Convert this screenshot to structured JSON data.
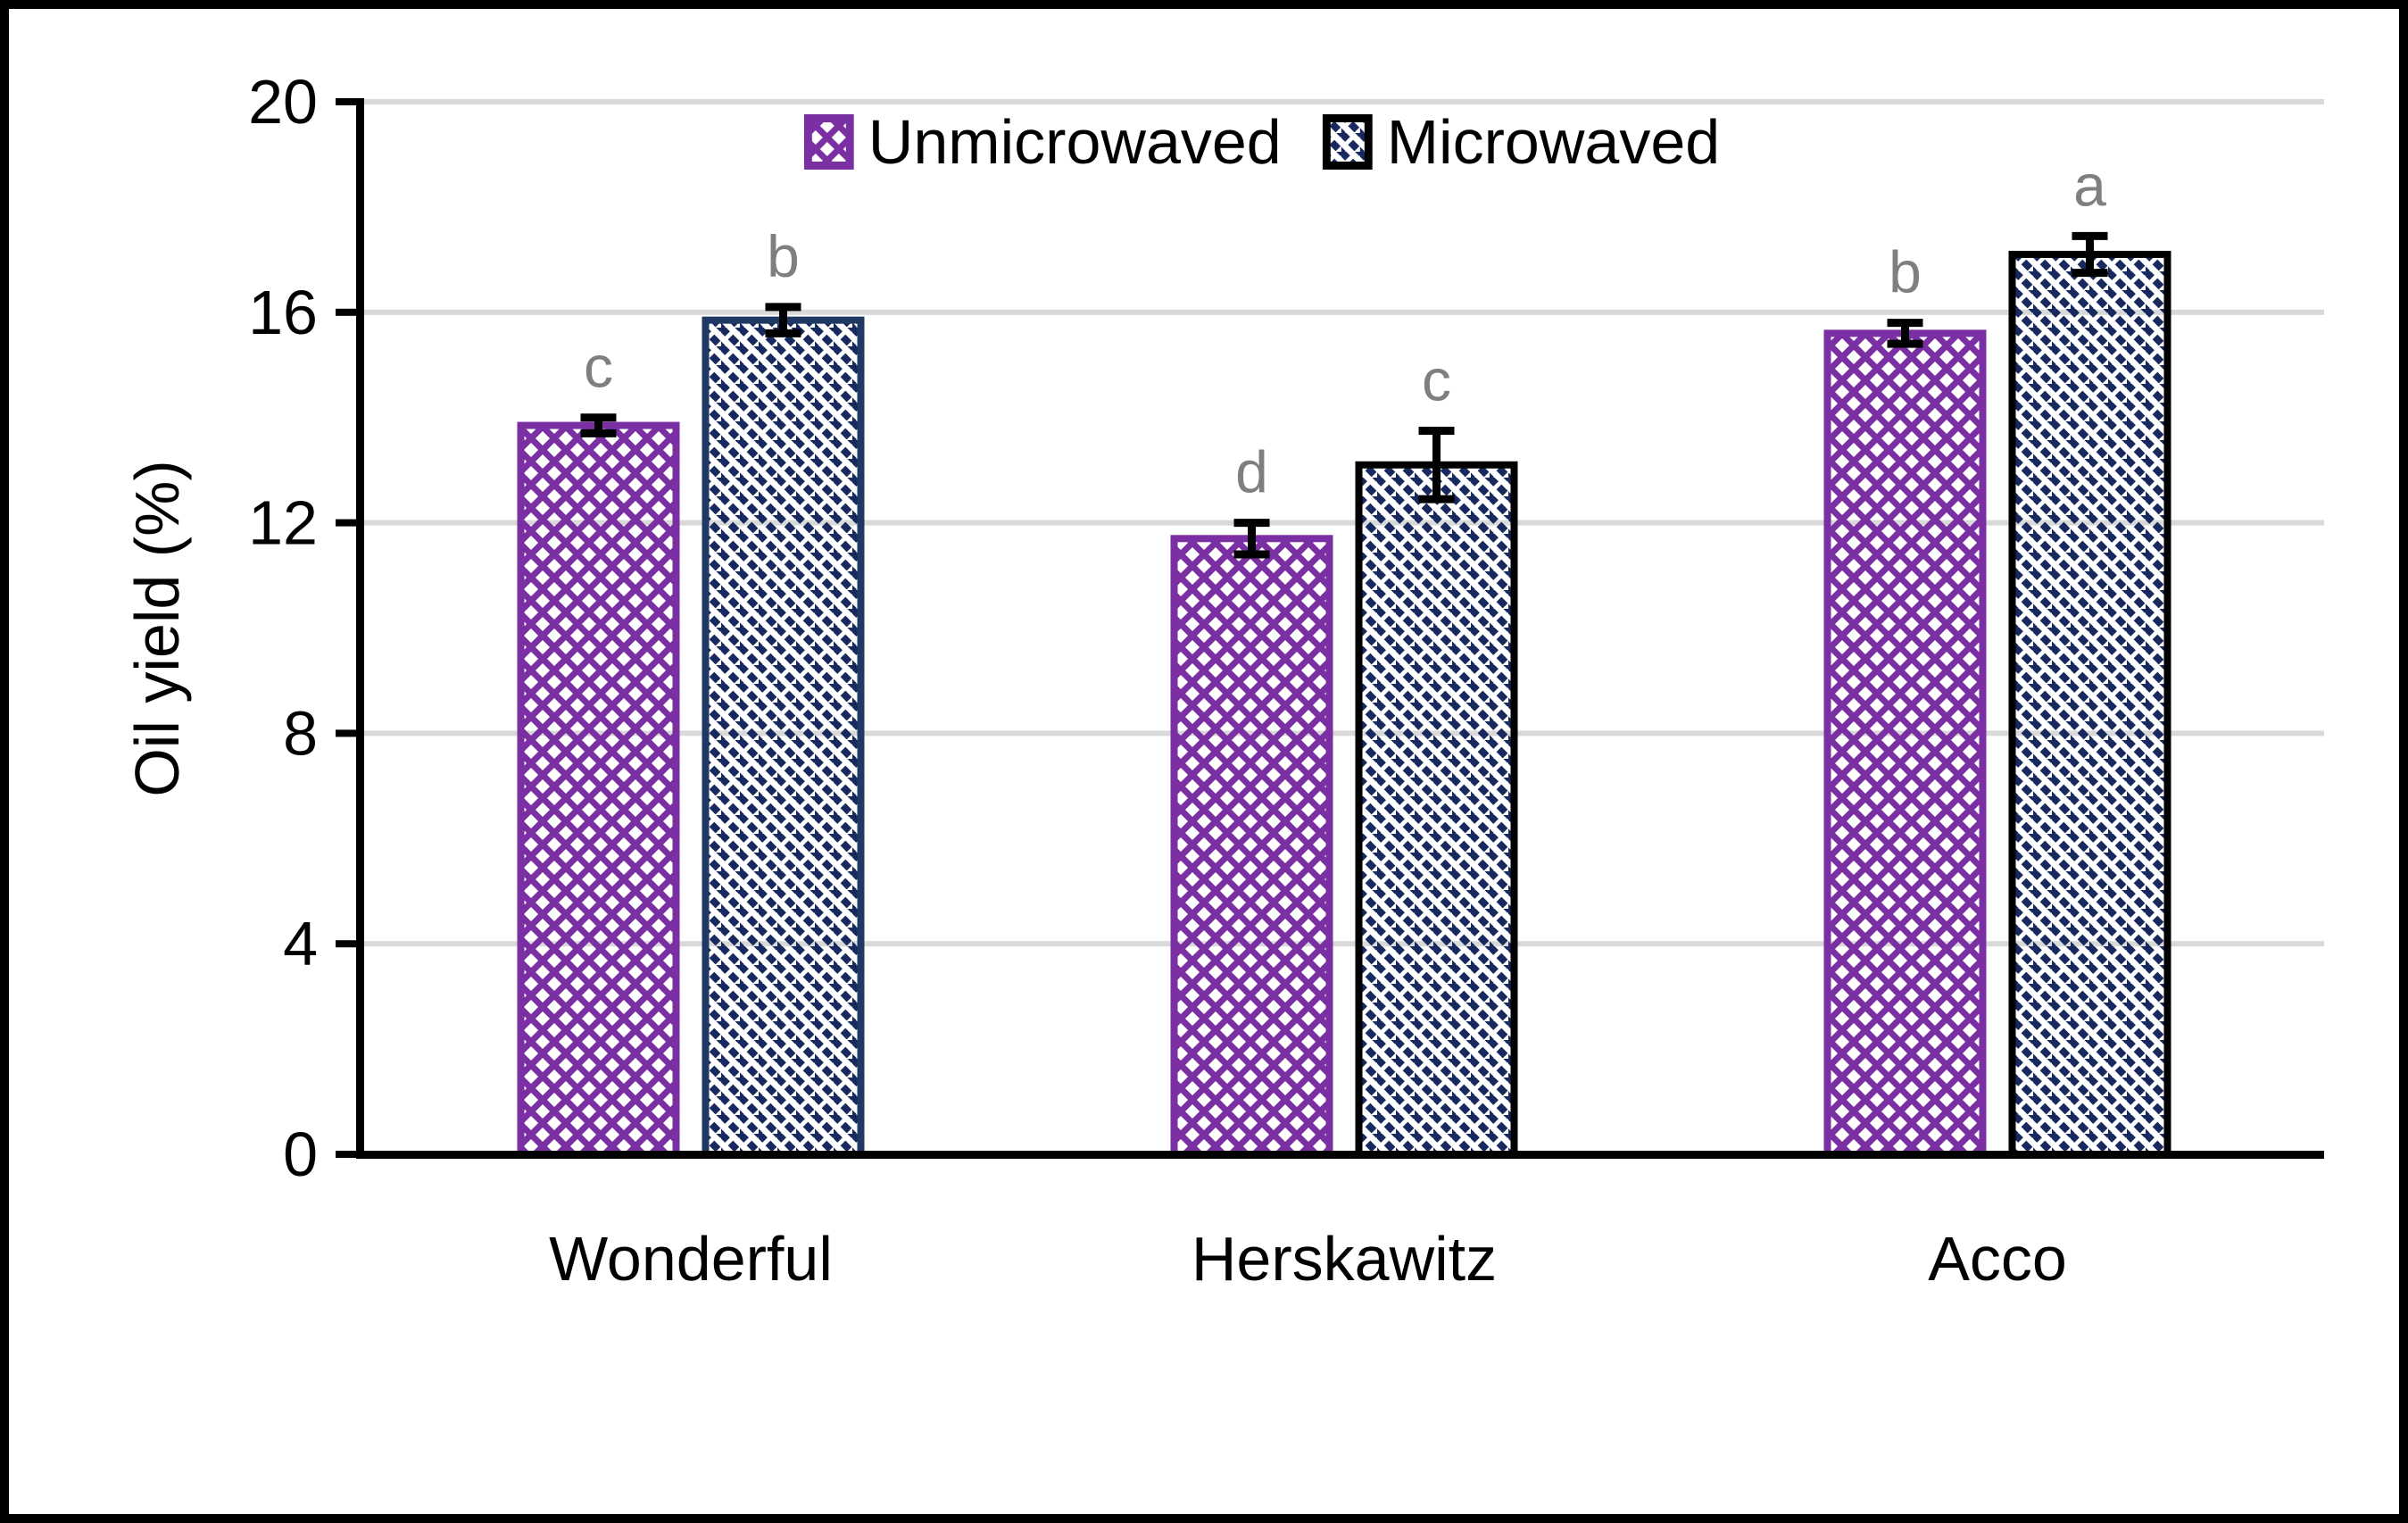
{
  "figure": {
    "background": "#FFFFFF",
    "border_color": "#000000"
  },
  "chart_data": {
    "type": "bar",
    "title": "",
    "categories": [
      "Wonderful",
      "Herskawitz",
      "Acco"
    ],
    "series": [
      {
        "name": "Unmicrowaved",
        "values": [
          13.85,
          11.7,
          15.6
        ],
        "errors": [
          0.15,
          0.3,
          0.2
        ],
        "sig_letters": [
          "c",
          "d",
          "b"
        ],
        "pattern": "diagonal-crosshatch",
        "color": "#7A30A2",
        "border_colors": [
          "#7A30A2",
          "#7A30A2",
          "#7A30A2"
        ]
      },
      {
        "name": "Microwaved",
        "values": [
          15.85,
          13.1,
          17.1
        ],
        "errors": [
          0.25,
          0.65,
          0.35
        ],
        "sig_letters": [
          "b",
          "c",
          "a"
        ],
        "pattern": "diagonal-hatch-down",
        "color": "#17295E",
        "border_colors": [
          "#1F3864",
          "#000000",
          "#000000"
        ]
      }
    ],
    "xlabel": "",
    "ylabel": "Oil yield (%)",
    "ylim": [
      0,
      20
    ],
    "yticks": [
      0,
      4,
      8,
      12,
      16,
      20
    ],
    "grid": "horizontal",
    "legend_position": "top-center",
    "colors": {
      "gridline": "#D9D9D9",
      "axis": "#000000",
      "error_bar": "#000000",
      "sig_letter": "#7F7F7F"
    }
  }
}
